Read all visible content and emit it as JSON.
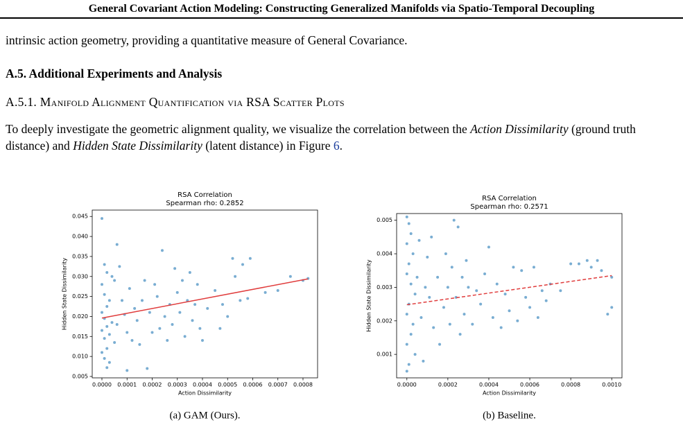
{
  "header": {
    "title": "General Covariant Action Modeling: Constructing Generalized Manifolds via Spatio-Temporal Decoupling"
  },
  "body": {
    "paragraph1": "intrinsic action geometry, providing a quantitative measure of General Covariance.",
    "section": "A.5. Additional Experiments and Analysis",
    "subsection": "A.5.1. Manifold Alignment Quantification via RSA Scatter Plots",
    "paragraph2": [
      "To deeply investigate the geometric alignment quality, we visualize the correlation between the ",
      "Action Dissimilarity",
      " (ground truth distance) and ",
      "Hidden State Dissimilarity",
      " (latent distance) in Figure ",
      "6",
      "."
    ]
  },
  "chart_data": [
    {
      "type": "scatter",
      "title": "RSA Correlation",
      "subtitle": "Spearman rho: 0.2852",
      "x_label": "Action Dissimilarity",
      "y_label": "Hidden State Dissimilarity",
      "caption": "(a) GAM (Ours).",
      "color": "#1f77b4",
      "xlim": [
        -3.86e-05,
        0.000858
      ],
      "ylim": [
        0.00465,
        0.0466
      ],
      "xticks": [
        {
          "value": 0,
          "label": "0.0000"
        },
        {
          "value": 0.0001,
          "label": "0.0001"
        },
        {
          "value": 0.0002,
          "label": "0.0002"
        },
        {
          "value": 0.0003,
          "label": "0.0003"
        },
        {
          "value": 0.0004,
          "label": "0.0004"
        },
        {
          "value": 0.0005,
          "label": "0.0005"
        },
        {
          "value": 0.0006,
          "label": "0.0006"
        },
        {
          "value": 0.0007,
          "label": "0.0007"
        },
        {
          "value": 0.0008,
          "label": "0.0008"
        }
      ],
      "yticks": [
        0.005,
        {
          "value": 0.01,
          "label": "0.010"
        },
        0.015,
        {
          "value": 0.02,
          "label": "0.020"
        },
        0.025,
        {
          "value": 0.03,
          "label": "0.030"
        },
        0.035,
        {
          "value": 0.04,
          "label": "0.040"
        },
        0.045
      ],
      "fit_line": {
        "x": [
          0,
          0.00082
        ],
        "y": [
          0.0196,
          0.0294
        ],
        "color": "#e03c3c",
        "dashed": false
      },
      "x": [
        0,
        1e-05,
        2e-05,
        0,
        1e-05,
        3e-05,
        2e-05,
        0,
        1e-05,
        4e-05,
        2e-05,
        0,
        3e-05,
        1e-05,
        5e-05,
        2e-05,
        0,
        1e-05,
        3e-05,
        2e-05,
        4e-05,
        6e-05,
        7e-05,
        5e-05,
        8e-05,
        9e-05,
        6e-05,
        0.0001,
        0.00012,
        0.00011,
        0.00013,
        0.00014,
        0.00015,
        0.00016,
        0.00017,
        0.00018,
        0.00019,
        0.0002,
        0.00021,
        0.00022,
        0.00023,
        0.00024,
        0.00025,
        0.00026,
        0.00027,
        0.00028,
        0.00029,
        0.0003,
        0.00031,
        0.00032,
        0.00033,
        0.00034,
        0.00035,
        0.00036,
        0.00037,
        0.00038,
        0.00039,
        0.0004,
        0.00042,
        0.00045,
        0.00047,
        0.00048,
        0.0005,
        0.00052,
        0.00053,
        0.00055,
        0.00056,
        0.00058,
        0.00059,
        0.00065,
        0.0007,
        0.00075,
        0.0008,
        0.00082,
        0.0001
      ],
      "values": [
        0.0445,
        0.033,
        0.031,
        0.028,
        0.0255,
        0.024,
        0.0225,
        0.021,
        0.0195,
        0.0185,
        0.0175,
        0.0165,
        0.0155,
        0.0145,
        0.0135,
        0.012,
        0.011,
        0.0095,
        0.0085,
        0.0072,
        0.03,
        0.038,
        0.0325,
        0.029,
        0.024,
        0.0205,
        0.018,
        0.016,
        0.014,
        0.027,
        0.022,
        0.019,
        0.013,
        0.024,
        0.029,
        0.007,
        0.021,
        0.016,
        0.028,
        0.025,
        0.017,
        0.0365,
        0.02,
        0.014,
        0.023,
        0.018,
        0.032,
        0.026,
        0.021,
        0.029,
        0.015,
        0.024,
        0.031,
        0.019,
        0.023,
        0.028,
        0.017,
        0.014,
        0.022,
        0.0265,
        0.017,
        0.023,
        0.02,
        0.0345,
        0.03,
        0.024,
        0.033,
        0.0245,
        0.0345,
        0.026,
        0.0265,
        0.03,
        0.029,
        0.0295,
        0.0065
      ]
    },
    {
      "type": "scatter",
      "title": "RSA Correlation",
      "subtitle": "Spearman rho: 0.2571",
      "x_label": "Action Dissimilarity",
      "y_label": "Hidden State Dissimilarity",
      "caption": "(b) Baseline.",
      "color": "#1f77b4",
      "xlim": [
        -5e-05,
        0.00105
      ],
      "ylim": [
        0.0003,
        0.0052
      ],
      "xticks": [
        {
          "value": 0,
          "label": "0.0000"
        },
        {
          "value": 0.0002,
          "label": "0.0002"
        },
        {
          "value": 0.0004,
          "label": "0.0004"
        },
        {
          "value": 0.0006,
          "label": "0.0006"
        },
        {
          "value": 0.0008,
          "label": "0.0008"
        },
        {
          "value": 0.001,
          "label": "0.0010"
        }
      ],
      "yticks": [
        0.001,
        0.002,
        0.003,
        0.004,
        0.005
      ],
      "fit_line": {
        "x": [
          0,
          0.001
        ],
        "y": [
          0.00248,
          0.00335
        ],
        "color": "#e03c3c",
        "dashed": true
      },
      "x": [
        0,
        1e-05,
        2e-05,
        0,
        3e-05,
        1e-05,
        0,
        2e-05,
        4e-05,
        1e-05,
        0,
        3e-05,
        2e-05,
        0,
        4e-05,
        1e-05,
        0,
        6e-05,
        8e-05,
        5e-05,
        7e-05,
        9e-05,
        0.0001,
        0.00012,
        0.00011,
        0.00013,
        0.00015,
        0.00016,
        0.00018,
        0.00019,
        0.0002,
        0.00021,
        0.00022,
        0.00023,
        0.00024,
        0.00025,
        0.00026,
        0.00027,
        0.00028,
        0.00029,
        0.0003,
        0.00032,
        0.00034,
        0.00036,
        0.00038,
        0.0004,
        0.00042,
        0.00044,
        0.00046,
        0.00048,
        0.0005,
        0.00052,
        0.00054,
        0.00056,
        0.00058,
        0.0006,
        0.00062,
        0.00064,
        0.00066,
        0.00068,
        0.0007,
        0.00075,
        0.0008,
        0.00084,
        0.00088,
        0.0009,
        0.00093,
        0.00095,
        0.00098,
        0.001,
        0.001
      ],
      "values": [
        0.0051,
        0.0049,
        0.0046,
        0.0043,
        0.004,
        0.0037,
        0.0034,
        0.0031,
        0.0028,
        0.0025,
        0.0022,
        0.0019,
        0.0016,
        0.0013,
        0.001,
        0.0007,
        0.0005,
        0.0044,
        0.0008,
        0.0033,
        0.0021,
        0.003,
        0.0039,
        0.0045,
        0.0027,
        0.0018,
        0.0033,
        0.0013,
        0.0024,
        0.004,
        0.003,
        0.0019,
        0.0036,
        0.005,
        0.0027,
        0.0048,
        0.0016,
        0.0033,
        0.0022,
        0.0038,
        0.003,
        0.0019,
        0.0029,
        0.0025,
        0.0034,
        0.0042,
        0.0021,
        0.0031,
        0.0018,
        0.0028,
        0.0023,
        0.0036,
        0.002,
        0.0035,
        0.0027,
        0.0024,
        0.0036,
        0.0021,
        0.0029,
        0.0026,
        0.0031,
        0.0029,
        0.0037,
        0.0037,
        0.0038,
        0.0036,
        0.0038,
        0.0035,
        0.0022,
        0.0024,
        0.0033
      ]
    }
  ]
}
